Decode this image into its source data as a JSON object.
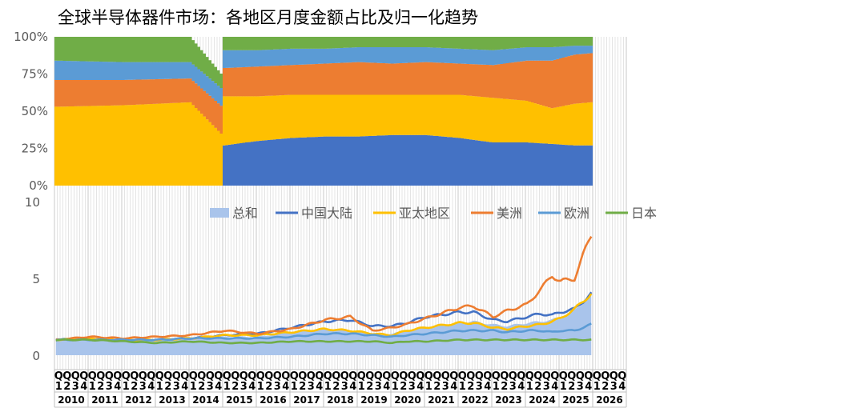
{
  "title": "全球半导体器件市场：各地区月度金额占比及归一化趋势",
  "colors": {
    "china": "#4472C4",
    "apac": "#FFC000",
    "americas": "#ED7D31",
    "europe": "#5B9BD5",
    "japan": "#70AD47",
    "total": "#A9C4EB"
  },
  "chart_data": [
    {
      "type": "area",
      "stacked": "percent",
      "y_ticks": [
        "0%",
        "25%",
        "50%",
        "75%",
        "100%"
      ],
      "ylim": [
        0,
        100
      ],
      "x_start": "2010-01",
      "x_end": "2025-12",
      "x_keys": [
        "2010-01",
        "2012-01",
        "2014-01",
        "2015-01",
        "2016-01",
        "2017-01",
        "2018-01",
        "2019-01",
        "2020-01",
        "2021-01",
        "2022-01",
        "2023-01",
        "2024-01",
        "2024-10",
        "2025-06",
        "2025-12"
      ],
      "series": [
        {
          "key": "china",
          "values": [
            0,
            0,
            0,
            27,
            30,
            32,
            33,
            33,
            34,
            34,
            32,
            29,
            29,
            28,
            27,
            27
          ]
        },
        {
          "key": "apac",
          "values": [
            53,
            54,
            56,
            33,
            30,
            29,
            28,
            28,
            27,
            27,
            29,
            30,
            28,
            24,
            28,
            29
          ]
        },
        {
          "key": "americas",
          "values": [
            18,
            17,
            16,
            19,
            20,
            20,
            21,
            22,
            21,
            22,
            21,
            22,
            27,
            32,
            33,
            33
          ]
        },
        {
          "key": "europe",
          "values": [
            13,
            12,
            11,
            12,
            11,
            11,
            10,
            10,
            11,
            10,
            10,
            10,
            9,
            9,
            6,
            5
          ]
        },
        {
          "key": "japan",
          "values": [
            16,
            17,
            17,
            9,
            9,
            8,
            8,
            7,
            7,
            7,
            8,
            9,
            7,
            7,
            6,
            6
          ]
        }
      ]
    },
    {
      "type": "line",
      "ylim": [
        0,
        10
      ],
      "y_ticks": [
        "0",
        "5",
        "10"
      ],
      "legend_position": "top-center",
      "x_start": "2010-01",
      "x_end": "2026-12",
      "x_keys": [
        "2010-01",
        "2011-01",
        "2012-01",
        "2013-01",
        "2014-01",
        "2015-01",
        "2016-01",
        "2017-01",
        "2018-01",
        "2018-10",
        "2019-06",
        "2020-01",
        "2020-06",
        "2021-01",
        "2022-01",
        "2022-06",
        "2023-01",
        "2023-06",
        "2024-01",
        "2024-06",
        "2024-10",
        "2025-01",
        "2025-06",
        "2025-12"
      ],
      "series": [
        {
          "name": "总和",
          "key": "total",
          "kind": "area",
          "values": [
            1.0,
            1.1,
            1.0,
            1.0,
            1.1,
            1.2,
            1.2,
            1.5,
            1.7,
            1.6,
            1.4,
            1.4,
            1.6,
            1.8,
            2.1,
            2.2,
            2.0,
            1.9,
            2.1,
            2.2,
            2.3,
            2.5,
            2.9,
            3.9
          ]
        },
        {
          "name": "中国大陆",
          "key": "china",
          "values": [
            1.0,
            1.1,
            1.0,
            1.0,
            1.1,
            1.3,
            1.4,
            1.8,
            2.2,
            2.3,
            1.9,
            1.9,
            2.1,
            2.5,
            2.8,
            2.8,
            2.3,
            2.2,
            2.5,
            2.7,
            2.6,
            2.8,
            3.0,
            4.0
          ]
        },
        {
          "name": "亚太地区",
          "key": "apac",
          "values": [
            1.0,
            1.1,
            1.0,
            1.0,
            1.1,
            1.3,
            1.3,
            1.5,
            1.7,
            1.6,
            1.4,
            1.3,
            1.6,
            1.8,
            2.1,
            2.1,
            1.8,
            1.7,
            1.9,
            2.0,
            2.2,
            2.4,
            3.0,
            4.0
          ]
        },
        {
          "name": "美洲",
          "key": "americas",
          "values": [
            1.0,
            1.2,
            1.1,
            1.2,
            1.3,
            1.6,
            1.4,
            1.7,
            2.3,
            2.5,
            1.6,
            1.8,
            2.0,
            2.4,
            3.1,
            3.2,
            2.5,
            2.9,
            3.3,
            4.3,
            5.2,
            4.8,
            5.0,
            7.9
          ]
        },
        {
          "name": "欧洲",
          "key": "europe",
          "values": [
            1.0,
            1.0,
            1.0,
            1.0,
            1.1,
            1.1,
            1.1,
            1.2,
            1.4,
            1.4,
            1.3,
            1.2,
            1.3,
            1.4,
            1.6,
            1.6,
            1.6,
            1.5,
            1.6,
            1.6,
            1.5,
            1.6,
            1.6,
            2.0
          ]
        },
        {
          "name": "日本",
          "key": "japan",
          "values": [
            1.0,
            1.0,
            0.9,
            0.8,
            0.9,
            0.8,
            0.8,
            0.9,
            0.9,
            0.9,
            0.9,
            0.8,
            0.9,
            0.9,
            1.0,
            1.0,
            1.0,
            1.0,
            1.0,
            1.0,
            1.0,
            1.0,
            1.0,
            1.0
          ]
        }
      ],
      "quarter_letter": "Q",
      "quarter_labels": [
        "1",
        "2",
        "3",
        "4"
      ],
      "years": [
        "2010",
        "2011",
        "2012",
        "2013",
        "2014",
        "2015",
        "2016",
        "2017",
        "2018",
        "2019",
        "2020",
        "2021",
        "2022",
        "2023",
        "2024",
        "2025",
        "2026"
      ]
    }
  ]
}
